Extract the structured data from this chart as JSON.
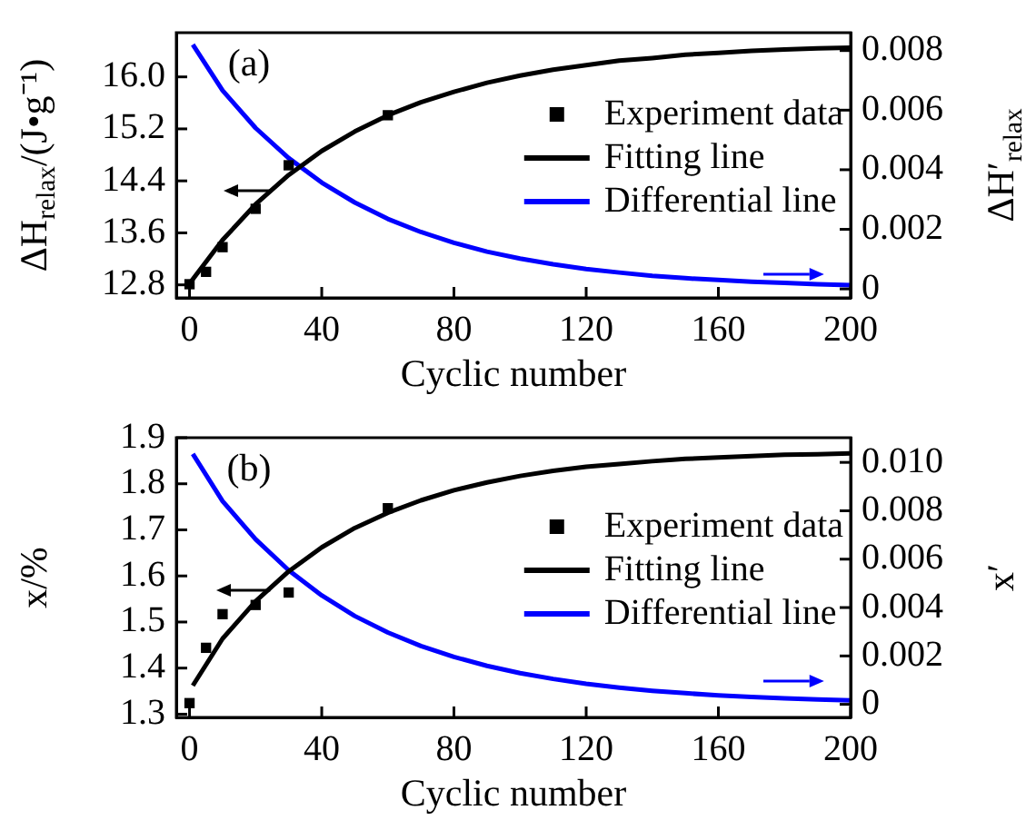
{
  "chart_data": [
    {
      "type": "scatter",
      "xlabel": "Cyclic number",
      "ylabel": "ΔH$_{relax}$/(J•g⁻¹)",
      "y2label": "ΔH′$_{relax}$",
      "annotations": [
        "(a)"
      ],
      "legend": "right",
      "grid": false,
      "xlim": [
        -4,
        200
      ],
      "xticks": [
        0,
        40,
        80,
        120,
        160,
        200
      ],
      "ylim": [
        12.6,
        16.68
      ],
      "yticks": [
        12.8,
        13.6,
        14.4,
        15.2,
        {
          "value": 16,
          "label": "16.0"
        }
      ],
      "y2lim": [
        -0.0003,
        0.0086
      ],
      "y2ticks": [
        0,
        0.002,
        0.004,
        0.006,
        0.008
      ],
      "series": [
        {
          "name": "Experiment data",
          "marker": "square",
          "color": "#000000",
          "x": [
            0,
            5,
            10,
            20,
            30,
            60
          ],
          "values": [
            12.81,
            13.0,
            13.38,
            13.97,
            14.64,
            15.41
          ]
        },
        {
          "name": "Fitting line",
          "type": "line",
          "marker": "none",
          "color": "#000000",
          "x": [
            0,
            10,
            20,
            30,
            40,
            50,
            60,
            70,
            80,
            90,
            100,
            110,
            120,
            130,
            140,
            150,
            160,
            170,
            180,
            190,
            200
          ],
          "values": [
            12.82,
            13.49,
            14.04,
            14.49,
            14.86,
            15.16,
            15.41,
            15.61,
            15.77,
            15.91,
            16.02,
            16.11,
            16.18,
            16.25,
            16.29,
            16.34,
            16.37,
            16.4,
            16.42,
            16.44,
            16.45
          ]
        },
        {
          "name": "Differential line",
          "type": "line",
          "marker": "none",
          "color": "#0000ff",
          "axis": "y2",
          "x": [
            1,
            10,
            20,
            30,
            40,
            50,
            60,
            70,
            80,
            90,
            100,
            110,
            120,
            130,
            140,
            150,
            160,
            170,
            180,
            190,
            200
          ],
          "values": [
            0.0082,
            0.00666,
            0.0054,
            0.00439,
            0.00357,
            0.0029,
            0.00235,
            0.00191,
            0.00155,
            0.00125,
            0.00102,
            0.00083,
            0.00067,
            0.00055,
            0.00044,
            0.00036,
            0.0003,
            0.00024,
            0.0002,
            0.00016,
            0.00013
          ]
        }
      ]
    },
    {
      "type": "scatter",
      "xlabel": "Cyclic number",
      "ylabel": "x/%",
      "y2label": "x′",
      "annotations": [
        "(b)"
      ],
      "legend": "right",
      "grid": false,
      "xlim": [
        -4,
        200
      ],
      "xticks": [
        0,
        40,
        80,
        120,
        160,
        200
      ],
      "ylim": [
        1.293,
        1.9
      ],
      "yticks": [
        1.3,
        1.4,
        1.5,
        1.6,
        1.7,
        1.8,
        1.9
      ],
      "y2lim": [
        -0.00054,
        0.01102
      ],
      "y2ticks": [
        0,
        0.002,
        0.004,
        0.006,
        0.008,
        {
          "value": 0.01,
          "label": "0.010"
        }
      ],
      "series": [
        {
          "name": "Experiment data",
          "marker": "square",
          "color": "#000000",
          "x": [
            0,
            5,
            10,
            20,
            30,
            60
          ],
          "values": [
            1.324,
            1.444,
            1.517,
            1.537,
            1.564,
            1.747
          ]
        },
        {
          "name": "Fitting line",
          "type": "line",
          "marker": "none",
          "color": "#000000",
          "x": [
            1,
            10,
            20,
            30,
            40,
            50,
            60,
            70,
            80,
            90,
            100,
            110,
            120,
            130,
            140,
            150,
            160,
            170,
            180,
            190,
            200
          ],
          "values": [
            1.362,
            1.464,
            1.545,
            1.61,
            1.662,
            1.704,
            1.737,
            1.764,
            1.786,
            1.803,
            1.817,
            1.828,
            1.837,
            1.843,
            1.849,
            1.854,
            1.857,
            1.86,
            1.863,
            1.864,
            1.866
          ]
        },
        {
          "name": "Differential line",
          "type": "line",
          "marker": "none",
          "color": "#0000ff",
          "axis": "y2",
          "x": [
            1,
            10,
            20,
            30,
            40,
            50,
            60,
            70,
            80,
            90,
            100,
            110,
            120,
            130,
            140,
            150,
            160,
            170,
            180,
            190,
            200
          ],
          "values": [
            0.01035,
            0.0084,
            0.00682,
            0.00554,
            0.0045,
            0.00365,
            0.00297,
            0.00241,
            0.00196,
            0.00159,
            0.00129,
            0.00105,
            0.00085,
            0.00069,
            0.00056,
            0.00046,
            0.00037,
            0.0003,
            0.00025,
            0.0002,
            0.00016
          ]
        }
      ]
    }
  ]
}
